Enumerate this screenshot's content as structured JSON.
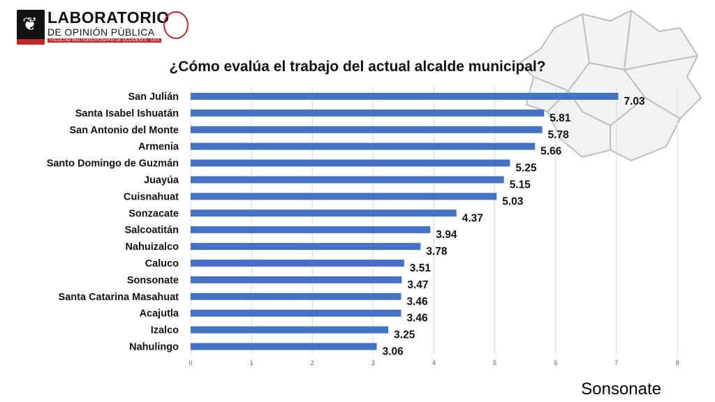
{
  "logo": {
    "title": "LABORATORIO",
    "subtitle": "DE OPINIÓN PÚBLICA",
    "small": "FACULTAD MULTIDISCIPLINARIA DE OCCIDENTE · UES"
  },
  "region": "Sonsonate",
  "colors": {
    "bar": "#4472C4",
    "grid": "#d9d9d9",
    "brand_red": "#c0272d"
  },
  "chart_data": {
    "type": "bar",
    "orientation": "horizontal",
    "title": "¿Cómo evalúa el trabajo del actual alcalde municipal?",
    "categories": [
      "San Julián",
      "Santa Isabel Ishuatán",
      "San Antonio del Monte",
      "Armenia",
      "Santo Domingo de Guzmán",
      "Juayúa",
      "Cuisnahuat",
      "Sonzacate",
      "Salcoatitán",
      "Nahuizalco",
      "Caluco",
      "Sonsonate",
      "Santa Catarina Masahuat",
      "Acajutla",
      "Izalco",
      "Nahulingo"
    ],
    "values": [
      7.03,
      5.81,
      5.78,
      5.66,
      5.25,
      5.15,
      5.03,
      4.37,
      3.94,
      3.78,
      3.51,
      3.47,
      3.46,
      3.46,
      3.25,
      3.06
    ],
    "value_labels": [
      "7.03",
      "5.81",
      "5.78",
      "5.66",
      "5.25",
      "5.15",
      "5.03",
      "4.37",
      "3.94",
      "3.78",
      "3.51",
      "3.47",
      "3.46",
      "3.46",
      "3.25",
      "3.06"
    ],
    "xlim": [
      0,
      8
    ],
    "xticks": [
      "0",
      "1",
      "2",
      "3",
      "4",
      "5",
      "6",
      "7",
      "8"
    ],
    "grid": true,
    "legend": "none"
  }
}
